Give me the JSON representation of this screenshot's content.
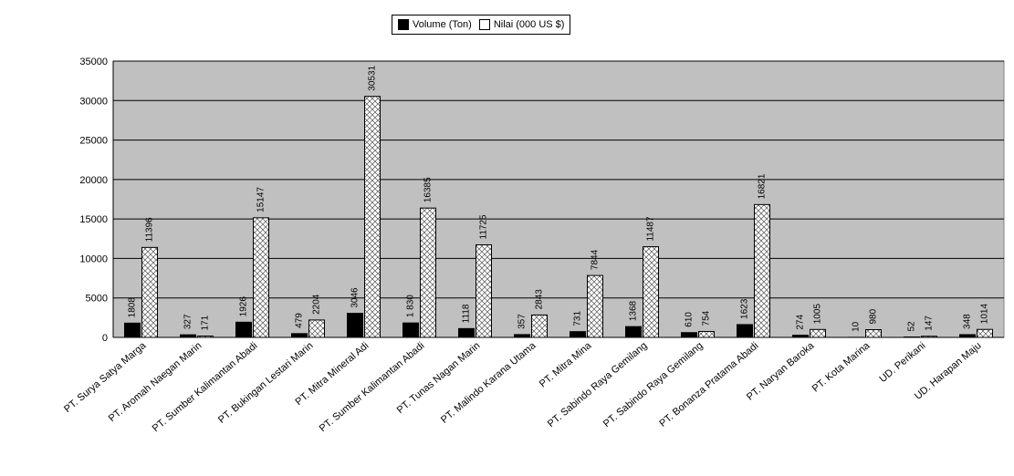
{
  "chart_data": {
    "type": "bar",
    "categories": [
      "PT. Surya Satya Marga",
      "PT. Aromah Naegan Marin",
      "PT. Sumber Kalimantan Abadi",
      "PT. Bukingan Lestari Marin",
      "PT. Mitra Mineral Adi",
      "PT. Sumber Kalimantan Abadi",
      "PT. Tunas Nagan Marin",
      "PT. Malindo Karana Utama",
      "PT. Mitra Mina",
      "PT. Sabindo Raya Gemilang",
      "PT. Sabindo Raya Gemilang",
      "PT. Bonanza Pratama Abadi",
      "PT. Naryan Baroka",
      "PT. Kota Marina",
      "UD. Perikani",
      "UD. Harapan Maju"
    ],
    "series": [
      {
        "name": "Volume (Ton)",
        "values": [
          1808,
          327,
          1926,
          479,
          3046,
          1830,
          1118,
          357,
          731,
          1368,
          610,
          1623,
          274,
          10,
          52,
          348
        ],
        "labels": [
          "1808",
          "327",
          "1926",
          "479",
          "3046",
          "1 830",
          "1118",
          "357",
          "731",
          "1368",
          "610",
          "1623",
          "274",
          "10",
          "52",
          "348"
        ]
      },
      {
        "name": "Nilai (000 US $)",
        "values": [
          11396,
          171,
          15147,
          2204,
          30531,
          16385,
          11725,
          2843,
          7844,
          11487,
          754,
          16821,
          1005,
          980,
          147,
          1014
        ],
        "labels": [
          "11396",
          "171",
          "15147",
          "2204",
          "30531",
          "16385",
          "11725",
          "2843",
          "7844",
          "11487",
          "754",
          "16821",
          "1005",
          "980",
          "147",
          "1014"
        ]
      }
    ],
    "y_ticks": [
      "0",
      "5000",
      "10000",
      "15000",
      "20000",
      "25000",
      "30000",
      "35000"
    ],
    "ylim": [
      0,
      35000
    ],
    "grid": true,
    "legend": "top",
    "colors": {
      "volume": "#000000",
      "nilai": "#ffffff",
      "plot_bg": "#c0c0c0"
    }
  }
}
